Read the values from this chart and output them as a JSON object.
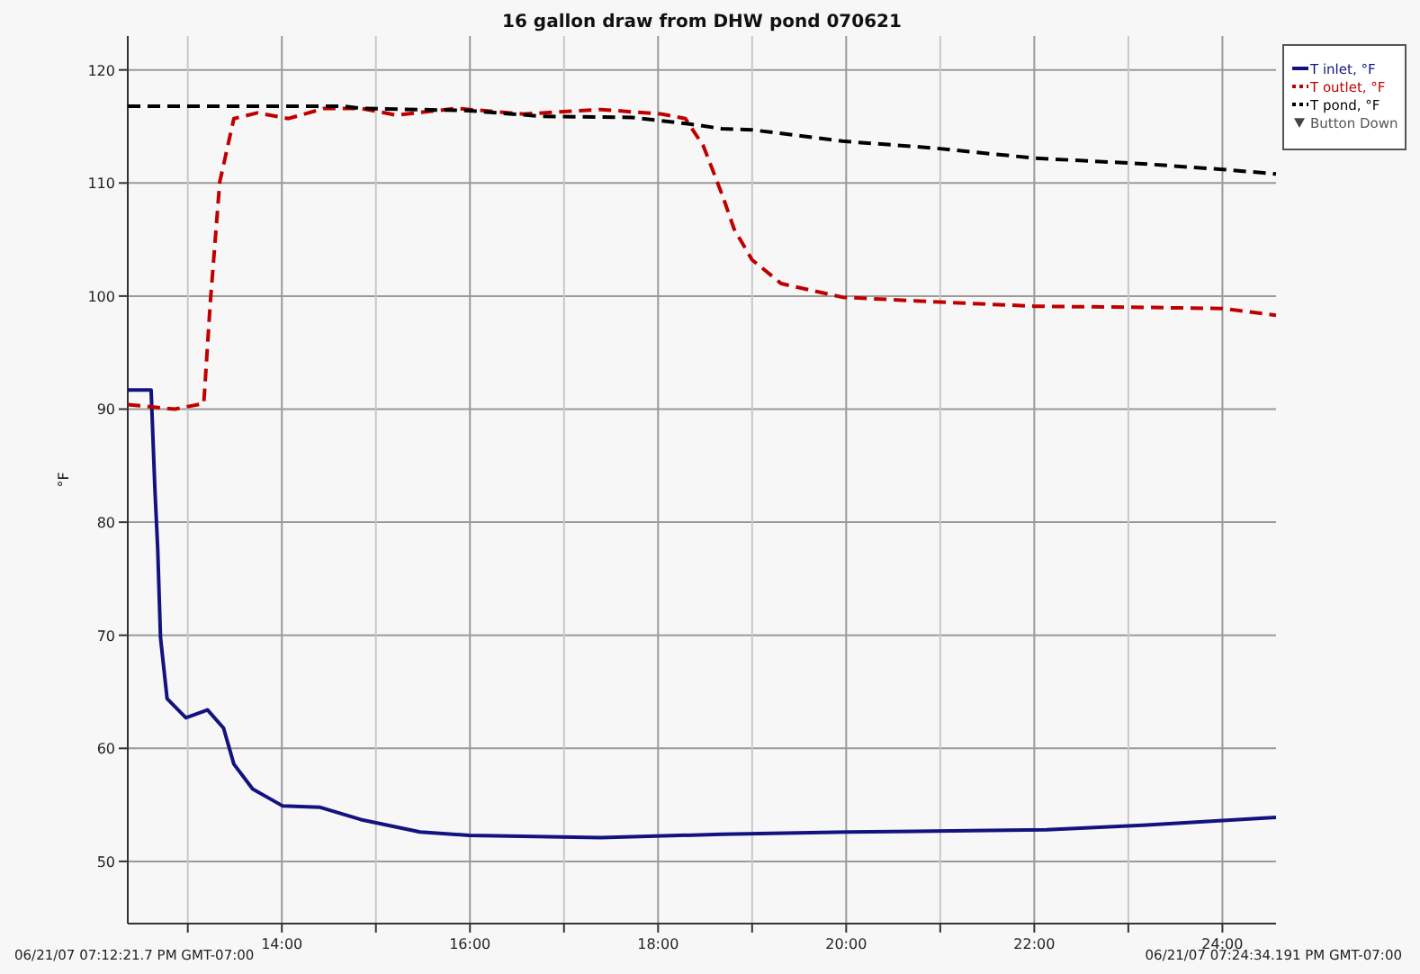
{
  "chart_data": {
    "type": "line",
    "title": "16 gallon draw from DHW pond 070621",
    "ylabel": "°F",
    "xlim": [
      12.362,
      24.57
    ],
    "ylim": [
      44.5,
      123
    ],
    "xticks": [
      {
        "value": 13,
        "label": null
      },
      {
        "value": 14,
        "label": "14:00"
      },
      {
        "value": 15,
        "label": null
      },
      {
        "value": 16,
        "label": "16:00"
      },
      {
        "value": 17,
        "label": null
      },
      {
        "value": 18,
        "label": "18:00"
      },
      {
        "value": 19,
        "label": null
      },
      {
        "value": 20,
        "label": "20:00"
      },
      {
        "value": 21,
        "label": null
      },
      {
        "value": 22,
        "label": "22:00"
      },
      {
        "value": 23,
        "label": null
      },
      {
        "value": 24,
        "label": "24:00"
      }
    ],
    "yticks": [
      50,
      60,
      70,
      80,
      90,
      100,
      110,
      120
    ],
    "grid": true,
    "legend": "top right",
    "annotations": [
      "06/21/07 07:12:21.7 PM GMT-07:00",
      "06/21/07 07:24:34.191 PM GMT-07:00"
    ],
    "series": [
      {
        "name": "T inlet, °F",
        "color": "#13137f",
        "line_style": "solid",
        "x": [
          12.362,
          12.61,
          12.65,
          12.68,
          12.71,
          12.78,
          12.98,
          13.21,
          13.38,
          13.49,
          13.69,
          14.01,
          14.4,
          14.84,
          15.47,
          15.99,
          17.39,
          18.68,
          20.02,
          22.13,
          23.15,
          24.57
        ],
        "values": [
          91.7,
          91.7,
          83,
          77.7,
          69.8,
          64.4,
          62.7,
          63.4,
          61.8,
          58.6,
          56.4,
          54.9,
          54.8,
          53.7,
          52.6,
          52.3,
          52.1,
          52.4,
          52.6,
          52.8,
          53.2,
          53.9
        ]
      },
      {
        "name": "T outlet, °F",
        "color": "#c00000",
        "line_style": "dashed",
        "x": [
          12.362,
          12.86,
          13.17,
          13.24,
          13.34,
          13.49,
          13.74,
          14.07,
          14.45,
          14.84,
          15.22,
          15.86,
          16.57,
          17.39,
          18.04,
          18.29,
          18.48,
          18.68,
          18.81,
          19.0,
          19.31,
          19.96,
          20.92,
          22.0,
          23.15,
          24.0,
          24.57
        ],
        "values": [
          90.4,
          90.0,
          90.5,
          99.5,
          110.1,
          115.7,
          116.2,
          115.7,
          116.6,
          116.6,
          116.0,
          116.6,
          116.1,
          116.5,
          116.1,
          115.7,
          113.3,
          109.0,
          105.9,
          103.2,
          101.1,
          99.9,
          99.5,
          99.1,
          99.0,
          98.9,
          98.3
        ]
      },
      {
        "name": "T pond, °F",
        "color": "#000000",
        "line_style": "dashed",
        "x": [
          12.362,
          14.65,
          14.84,
          15.99,
          16.76,
          17.72,
          18.35,
          18.68,
          19.0,
          19.96,
          20.92,
          22.0,
          23.15,
          24.0,
          24.57
        ],
        "values": [
          116.8,
          116.8,
          116.6,
          116.4,
          115.9,
          115.8,
          115.2,
          114.8,
          114.7,
          113.7,
          113.1,
          112.2,
          111.7,
          111.2,
          110.8
        ]
      },
      {
        "name": "Button Down",
        "type": "scatter",
        "marker": "triangle",
        "color": "#444444"
      }
    ]
  }
}
